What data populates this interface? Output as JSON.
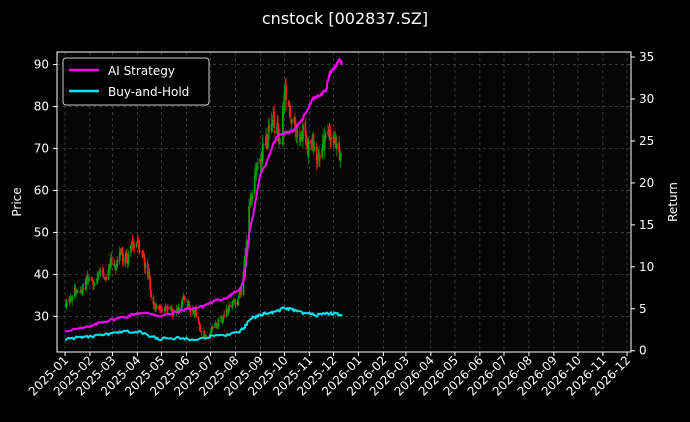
{
  "chart_data": {
    "type": "line",
    "title": "cnstock [002837.SZ]",
    "ylabel_left": "Price",
    "ylabel_right": "Return",
    "xlabel": "",
    "grid": true,
    "legend_position": "top-left",
    "ylim_left": [
      21.5,
      93
    ],
    "ylim_right": [
      -0.15,
      35.6
    ],
    "yticks_left": [
      30,
      40,
      50,
      60,
      70,
      80,
      90
    ],
    "yticks_right": [
      0,
      5,
      10,
      15,
      20,
      25,
      30,
      35
    ],
    "xticks": [
      "2025-01",
      "2025-02",
      "2025-03",
      "2025-04",
      "2025-05",
      "2025-06",
      "2025-07",
      "2025-08",
      "2025-09",
      "2025-10",
      "2025-11",
      "2025-12",
      "2026-01",
      "2026-02",
      "2026-03",
      "2026-04",
      "2026-05",
      "2026-06",
      "2026-07",
      "2026-08",
      "2026-09",
      "2026-10",
      "2026-11",
      "2026-12"
    ],
    "colors": {
      "background": "#000000",
      "grid": "#555555",
      "up_candle": "#00a000",
      "down_candle": "#ff1a1a",
      "ai_strategy": "#ff00ff",
      "buy_and_hold": "#00e5ee",
      "text": "#ffffff"
    },
    "price_path": [
      [
        "2025-01-02",
        33
      ],
      [
        "2025-01-08",
        34
      ],
      [
        "2025-01-15",
        37
      ],
      [
        "2025-01-22",
        36.5
      ],
      [
        "2025-01-28",
        39
      ],
      [
        "2025-02-05",
        37.5
      ],
      [
        "2025-02-12",
        41
      ],
      [
        "2025-02-20",
        39
      ],
      [
        "2025-02-27",
        43
      ],
      [
        "2025-03-05",
        41
      ],
      [
        "2025-03-10",
        45.5
      ],
      [
        "2025-03-14",
        43
      ],
      [
        "2025-03-20",
        44
      ],
      [
        "2025-03-26",
        47
      ],
      [
        "2025-04-02",
        48
      ],
      [
        "2025-04-08",
        44
      ],
      [
        "2025-04-15",
        40
      ],
      [
        "2025-04-18",
        34
      ],
      [
        "2025-04-24",
        32
      ],
      [
        "2025-05-01",
        31.5
      ],
      [
        "2025-05-08",
        32.5
      ],
      [
        "2025-05-15",
        31
      ],
      [
        "2025-05-22",
        32.5
      ],
      [
        "2025-05-29",
        34
      ],
      [
        "2025-06-05",
        32
      ],
      [
        "2025-06-12",
        31
      ],
      [
        "2025-06-18",
        27
      ],
      [
        "2025-06-24",
        25
      ],
      [
        "2025-06-30",
        26
      ],
      [
        "2025-07-07",
        28
      ],
      [
        "2025-07-14",
        29
      ],
      [
        "2025-07-21",
        31
      ],
      [
        "2025-07-28",
        33
      ],
      [
        "2025-08-04",
        34
      ],
      [
        "2025-08-08",
        36
      ],
      [
        "2025-08-13",
        45
      ],
      [
        "2025-08-18",
        55
      ],
      [
        "2025-08-24",
        62
      ],
      [
        "2025-08-29",
        67
      ],
      [
        "2025-09-05",
        70
      ],
      [
        "2025-09-10",
        72
      ],
      [
        "2025-09-15",
        78
      ],
      [
        "2025-09-20",
        75
      ],
      [
        "2025-09-26",
        73
      ],
      [
        "2025-10-01",
        83
      ],
      [
        "2025-10-06",
        80
      ],
      [
        "2025-10-12",
        76
      ],
      [
        "2025-10-18",
        73
      ],
      [
        "2025-10-24",
        74
      ],
      [
        "2025-10-30",
        70
      ],
      [
        "2025-11-05",
        72
      ],
      [
        "2025-11-10",
        68
      ],
      [
        "2025-11-16",
        70
      ],
      [
        "2025-11-22",
        74
      ],
      [
        "2025-11-28",
        71
      ],
      [
        "2025-12-04",
        72
      ],
      [
        "2025-12-10",
        69
      ]
    ],
    "series": [
      {
        "name": "AI Strategy",
        "axis": "right",
        "points": [
          [
            "2025-01-01",
            2.4
          ],
          [
            "2025-02-01",
            2.8
          ],
          [
            "2025-02-15",
            3.4
          ],
          [
            "2025-03-01",
            3.7
          ],
          [
            "2025-03-20",
            4.1
          ],
          [
            "2025-04-01",
            4.5
          ],
          [
            "2025-04-20",
            4.4
          ],
          [
            "2025-05-01",
            4.1
          ],
          [
            "2025-05-20",
            4.6
          ],
          [
            "2025-06-01",
            5.0
          ],
          [
            "2025-06-20",
            5.2
          ],
          [
            "2025-07-01",
            5.7
          ],
          [
            "2025-07-20",
            6.3
          ],
          [
            "2025-08-01",
            7.0
          ],
          [
            "2025-08-08",
            7.3
          ],
          [
            "2025-08-13",
            9.0
          ],
          [
            "2025-08-18",
            13.5
          ],
          [
            "2025-08-25",
            17.0
          ],
          [
            "2025-09-01",
            21.0
          ],
          [
            "2025-09-08",
            22.0
          ],
          [
            "2025-09-15",
            24.0
          ],
          [
            "2025-09-22",
            25.5
          ],
          [
            "2025-10-01",
            26.0
          ],
          [
            "2025-10-10",
            26.1
          ],
          [
            "2025-10-20",
            27.0
          ],
          [
            "2025-10-28",
            28.5
          ],
          [
            "2025-11-05",
            30.0
          ],
          [
            "2025-11-15",
            30.5
          ],
          [
            "2025-11-22",
            31.0
          ],
          [
            "2025-11-26",
            33.0
          ],
          [
            "2025-12-01",
            33.5
          ],
          [
            "2025-12-05",
            34.0
          ],
          [
            "2025-12-08",
            34.7
          ],
          [
            "2025-12-12",
            34.2
          ]
        ]
      },
      {
        "name": "Buy-and-Hold",
        "axis": "right",
        "points": [
          [
            "2025-01-01",
            1.4
          ],
          [
            "2025-01-20",
            1.6
          ],
          [
            "2025-02-05",
            1.7
          ],
          [
            "2025-02-20",
            1.9
          ],
          [
            "2025-03-05",
            2.1
          ],
          [
            "2025-03-20",
            2.3
          ],
          [
            "2025-04-05",
            2.2
          ],
          [
            "2025-04-18",
            1.7
          ],
          [
            "2025-05-01",
            1.4
          ],
          [
            "2025-05-20",
            1.5
          ],
          [
            "2025-06-05",
            1.4
          ],
          [
            "2025-06-20",
            1.5
          ],
          [
            "2025-07-05",
            1.7
          ],
          [
            "2025-07-20",
            1.9
          ],
          [
            "2025-08-05",
            2.2
          ],
          [
            "2025-08-13",
            2.8
          ],
          [
            "2025-08-20",
            3.8
          ],
          [
            "2025-09-01",
            4.3
          ],
          [
            "2025-09-10",
            4.5
          ],
          [
            "2025-09-20",
            4.6
          ],
          [
            "2025-10-01",
            5.1
          ],
          [
            "2025-10-10",
            4.9
          ],
          [
            "2025-10-20",
            4.6
          ],
          [
            "2025-11-01",
            4.4
          ],
          [
            "2025-11-10",
            4.2
          ],
          [
            "2025-11-20",
            4.5
          ],
          [
            "2025-12-01",
            4.4
          ],
          [
            "2025-12-12",
            4.3
          ]
        ]
      }
    ]
  }
}
